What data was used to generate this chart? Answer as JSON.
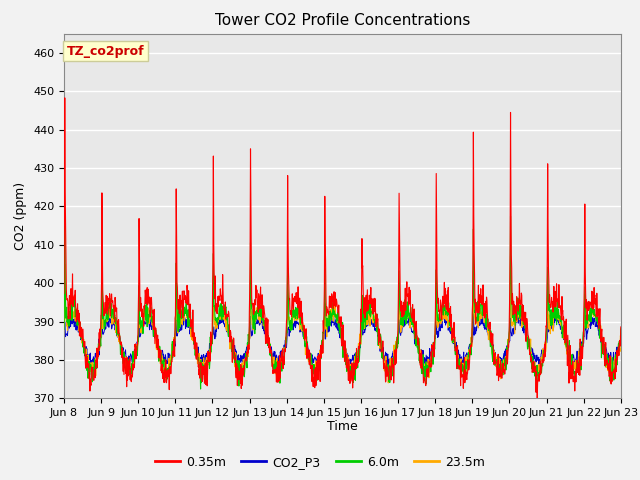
{
  "title": "Tower CO2 Profile Concentrations",
  "xlabel": "Time",
  "ylabel": "CO2 (ppm)",
  "ylim": [
    370,
    465
  ],
  "yticks": [
    370,
    380,
    390,
    400,
    410,
    420,
    430,
    440,
    450,
    460
  ],
  "legend_label": "TZ_co2prof",
  "legend_bbox_color": "#ffffcc",
  "legend_text_color": "#cc0000",
  "legend_border_color": "#cccc99",
  "series_colors": {
    "0.35m": "#ff0000",
    "CO2_P3": "#0000cc",
    "6.0m": "#00cc00",
    "23.5m": "#ffaa00"
  },
  "fig_bg_color": "#f2f2f2",
  "plot_bg_color": "#e8e8e8",
  "grid_color": "#ffffff",
  "title_fontsize": 11,
  "axis_label_fontsize": 9,
  "tick_label_fontsize": 8,
  "legend_fontsize": 9,
  "x_tick_labels": [
    "Jun 8",
    "Jun 9",
    "Jun 10",
    "Jun 11",
    "Jun 12",
    "Jun 13",
    "Jun 14",
    "Jun 15",
    "Jun 16",
    "Jun 17",
    "Jun 18",
    "Jun 19",
    "Jun 20",
    "Jun 21",
    "Jun 22",
    "Jun 23"
  ]
}
